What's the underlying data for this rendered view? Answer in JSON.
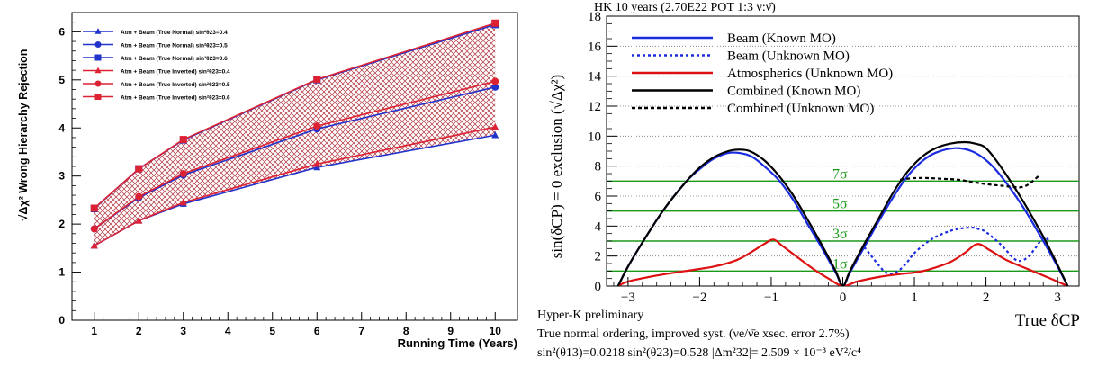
{
  "chart_data": [
    {
      "type": "line",
      "panel": "left",
      "xlabel": "Running Time (Years)",
      "ylabel": "√Δχ² Wrong Hierarchy Rejection",
      "xlim": [
        0.5,
        10.5
      ],
      "ylim": [
        0,
        6.4
      ],
      "xticks": [
        "1",
        "2",
        "3",
        "4",
        "5",
        "6",
        "7",
        "8",
        "9",
        "10"
      ],
      "yticks": [
        "0",
        "1",
        "2",
        "3",
        "4",
        "5",
        "6"
      ],
      "grid": false,
      "legend_position": "top-left",
      "band_fill": "between True Inverted sin²θ23=0.6 and True Normal sin²θ23=0.4 (red cross-hatch)",
      "series": [
        {
          "name": "Atm + Beam (True Normal) sin²θ23=0.4",
          "color": "#2233cc",
          "marker": "triangle",
          "x": [
            1,
            2,
            3,
            6,
            10
          ],
          "y": [
            1.55,
            2.07,
            2.42,
            3.18,
            3.85
          ]
        },
        {
          "name": "Atm + Beam (True Normal) sin²θ23=0.5",
          "color": "#2233cc",
          "marker": "circle",
          "x": [
            1,
            2,
            3,
            6,
            10
          ],
          "y": [
            1.9,
            2.55,
            3.02,
            3.98,
            4.85
          ]
        },
        {
          "name": "Atm + Beam (True Normal) sin²θ23=0.6",
          "color": "#2233cc",
          "marker": "square",
          "x": [
            1,
            2,
            3,
            6,
            10
          ],
          "y": [
            2.32,
            3.15,
            3.75,
            5.0,
            6.15
          ]
        },
        {
          "name": "Atm + Beam (True Inverted) sin²θ23=0.4",
          "color": "#dd2233",
          "marker": "triangle",
          "x": [
            1,
            2,
            3,
            6,
            10
          ],
          "y": [
            1.55,
            2.07,
            2.45,
            3.25,
            4.02
          ]
        },
        {
          "name": "Atm + Beam (True Inverted) sin²θ23=0.5",
          "color": "#dd2233",
          "marker": "circle",
          "x": [
            1,
            2,
            3,
            6,
            10
          ],
          "y": [
            1.9,
            2.57,
            3.05,
            4.04,
            4.97
          ]
        },
        {
          "name": "Atm + Beam (True Inverted) sin²θ23=0.6",
          "color": "#dd2233",
          "marker": "square",
          "x": [
            1,
            2,
            3,
            6,
            10
          ],
          "y": [
            2.33,
            3.15,
            3.76,
            5.01,
            6.18
          ]
        }
      ]
    },
    {
      "type": "line",
      "panel": "right",
      "title": "HK 10 years (2.70E22 POT 1:3 ν:ν̄)",
      "xlabel": "True δCP",
      "ylabel": "sin(δCP) = 0 exclusion (√Δχ²)",
      "xlim": [
        -3.3,
        3.3
      ],
      "ylim": [
        0,
        18
      ],
      "xticks": [
        "−3",
        "−2",
        "−1",
        "0",
        "1",
        "2",
        "3"
      ],
      "yticks": [
        "0",
        "2",
        "4",
        "6",
        "8",
        "10",
        "12",
        "14",
        "16",
        "18"
      ],
      "grid": "dotted horizontal at every 2",
      "legend_position": "top",
      "sigma_lines": [
        {
          "label": "1σ",
          "y": 1
        },
        {
          "label": "3σ",
          "y": 3
        },
        {
          "label": "5σ",
          "y": 5
        },
        {
          "label": "7σ",
          "y": 7
        }
      ],
      "sigma_color": "#1a9a1a",
      "series": [
        {
          "name": "Beam (Known MO)",
          "color": "#1a2be0",
          "dash": "solid",
          "x": [
            -3.14,
            -3.0,
            -2.8,
            -2.5,
            -2.2,
            -2.0,
            -1.8,
            -1.57,
            -1.3,
            -1.1,
            -0.9,
            -0.7,
            -0.5,
            -0.3,
            -0.1,
            0,
            0.1,
            0.3,
            0.5,
            0.7,
            0.9,
            1.1,
            1.3,
            1.57,
            1.8,
            2.0,
            2.2,
            2.5,
            2.8,
            3.0,
            3.14
          ],
          "y": [
            0,
            1.3,
            2.9,
            5.1,
            6.9,
            7.8,
            8.5,
            8.9,
            8.7,
            8.0,
            7.1,
            5.8,
            4.2,
            2.6,
            0.9,
            0,
            0.9,
            2.6,
            4.3,
            5.9,
            7.3,
            8.3,
            8.9,
            9.2,
            9.0,
            8.4,
            7.4,
            5.4,
            3.0,
            1.3,
            0
          ]
        },
        {
          "name": "Beam (Unknown MO)",
          "color": "#1a2be0",
          "dash": "dotted",
          "x": [
            0.3,
            0.4,
            0.5,
            0.6,
            0.7,
            0.8,
            0.9,
            1.0,
            1.2,
            1.4,
            1.6,
            1.8,
            1.9,
            2.0,
            2.2,
            2.4,
            2.5,
            2.6,
            2.7,
            2.8,
            2.9
          ],
          "y": [
            2.6,
            2.0,
            1.4,
            0.9,
            0.85,
            1.1,
            1.6,
            2.2,
            3.0,
            3.5,
            3.8,
            3.9,
            3.8,
            3.6,
            2.8,
            1.8,
            1.7,
            2.0,
            2.6,
            3.2,
            3.0
          ]
        },
        {
          "name": "Atmospherics (Unknown MO)",
          "color": "#dd1111",
          "dash": "solid",
          "x": [
            -3.14,
            -3.0,
            -2.6,
            -2.2,
            -1.8,
            -1.5,
            -1.3,
            -1.1,
            -0.97,
            -0.85,
            -0.6,
            -0.4,
            -0.2,
            0,
            0.2,
            0.5,
            0.8,
            1.0,
            1.2,
            1.5,
            1.7,
            1.88,
            2.05,
            2.3,
            2.6,
            2.9,
            3.14
          ],
          "y": [
            0,
            0.3,
            0.7,
            1.0,
            1.3,
            1.7,
            2.2,
            2.8,
            3.1,
            2.7,
            1.8,
            1.1,
            0.5,
            0,
            0.3,
            0.6,
            0.8,
            0.9,
            1.1,
            1.6,
            2.2,
            2.8,
            2.4,
            1.7,
            1.1,
            0.5,
            0
          ]
        },
        {
          "name": "Combined (Known MO)",
          "color": "#000000",
          "dash": "solid",
          "x": [
            -3.14,
            -3.0,
            -2.8,
            -2.5,
            -2.2,
            -2.0,
            -1.8,
            -1.6,
            -1.45,
            -1.3,
            -1.1,
            -0.9,
            -0.7,
            -0.5,
            -0.3,
            -0.1,
            0,
            0.1,
            0.3,
            0.5,
            0.7,
            0.9,
            1.1,
            1.3,
            1.5,
            1.7,
            1.85,
            2.0,
            2.2,
            2.5,
            2.8,
            3.0,
            3.14
          ],
          "y": [
            0,
            1.3,
            2.9,
            5.1,
            6.9,
            7.9,
            8.6,
            9.0,
            9.1,
            9.0,
            8.4,
            7.4,
            6.1,
            4.5,
            2.8,
            1.0,
            0,
            1.0,
            2.8,
            4.5,
            6.2,
            7.6,
            8.6,
            9.2,
            9.5,
            9.6,
            9.5,
            9.2,
            8.0,
            5.8,
            3.3,
            1.4,
            0
          ]
        },
        {
          "name": "Combined (Unknown MO)",
          "color": "#000000",
          "dash": "dashed",
          "x": [
            0.8,
            1.0,
            1.2,
            1.4,
            1.6,
            1.8,
            2.0,
            2.2,
            2.4,
            2.5,
            2.6,
            2.75
          ],
          "y": [
            7.1,
            7.2,
            7.2,
            7.15,
            7.1,
            6.95,
            6.8,
            6.7,
            6.6,
            6.6,
            6.8,
            7.4
          ]
        }
      ]
    }
  ],
  "right_notes": [
    "Hyper-K preliminary",
    "True normal ordering, improved syst. (νe/ν̄e xsec. error 2.7%)",
    "sin²(θ13)=0.0218 sin²(θ23)=0.528 |Δm²32|= 2.509 × 10⁻³ eV²/c⁴"
  ]
}
